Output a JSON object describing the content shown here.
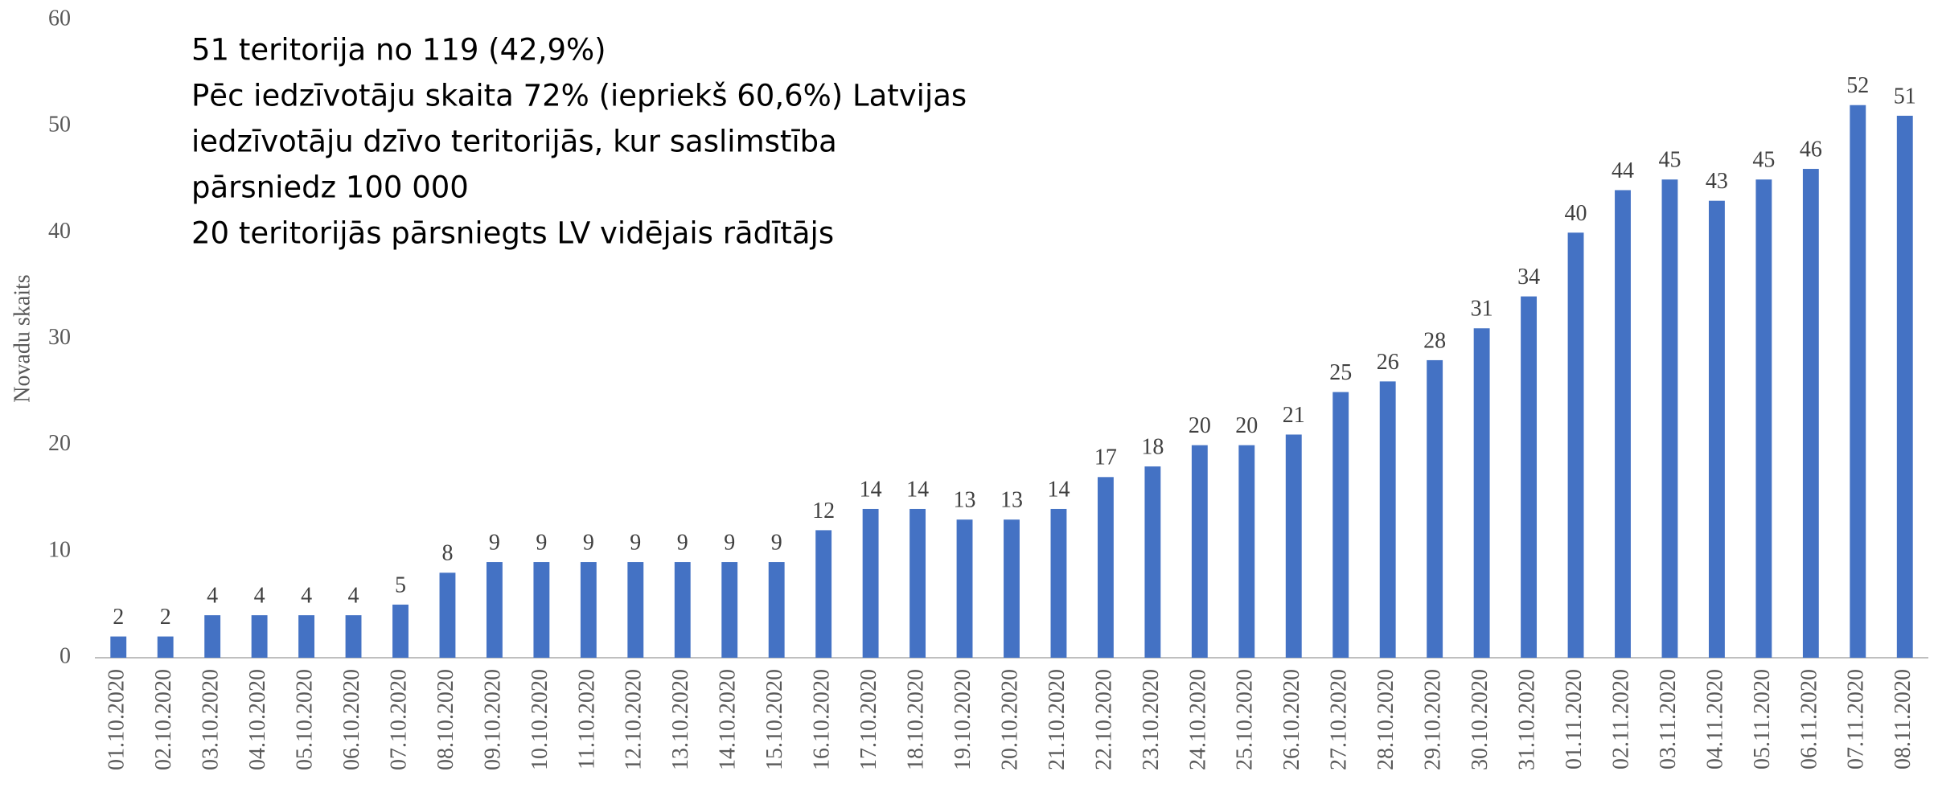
{
  "chart_data": {
    "type": "bar",
    "annotation": [
      "51 teritorija no 119 (42,9%)",
      "Pēc iedzīvotāju skaita 72% (iepriekš 60,6%) Latvijas",
      "iedzīvotāju dzīvo teritorijās, kur saslimstība",
      "pārsniedz 100 000",
      "20 teritorijās pārsniegts LV  vidējais rādītājs"
    ],
    "y_label": "Novadu skaits",
    "categories": [
      "01.10.2020",
      "02.10.2020",
      "03.10.2020",
      "04.10.2020",
      "05.10.2020",
      "06.10.2020",
      "07.10.2020",
      "08.10.2020",
      "09.10.2020",
      "10.10.2020",
      "11.10.2020",
      "12.10.2020",
      "13.10.2020",
      "14.10.2020",
      "15.10.2020",
      "16.10.2020",
      "17.10.2020",
      "18.10.2020",
      "19.10.2020",
      "20.10.2020",
      "21.10.2020",
      "22.10.2020",
      "23.10.2020",
      "24.10.2020",
      "25.10.2020",
      "26.10.2020",
      "27.10.2020",
      "28.10.2020",
      "29.10.2020",
      "30.10.2020",
      "31.10.2020",
      "01.11.2020",
      "02.11.2020",
      "03.11.2020",
      "04.11.2020",
      "05.11.2020",
      "06.11.2020",
      "07.11.2020",
      "08.11.2020"
    ],
    "values": [
      2,
      2,
      4,
      4,
      4,
      4,
      5,
      8,
      9,
      9,
      9,
      9,
      9,
      9,
      9,
      12,
      14,
      14,
      13,
      13,
      14,
      17,
      18,
      20,
      20,
      21,
      25,
      26,
      28,
      31,
      34,
      40,
      44,
      45,
      43,
      45,
      46,
      52,
      51
    ],
    "color": "#4472c4",
    "ylim": [
      0,
      60
    ],
    "yticks": [
      0,
      10,
      20,
      30,
      40,
      50,
      60
    ],
    "grid": false
  }
}
